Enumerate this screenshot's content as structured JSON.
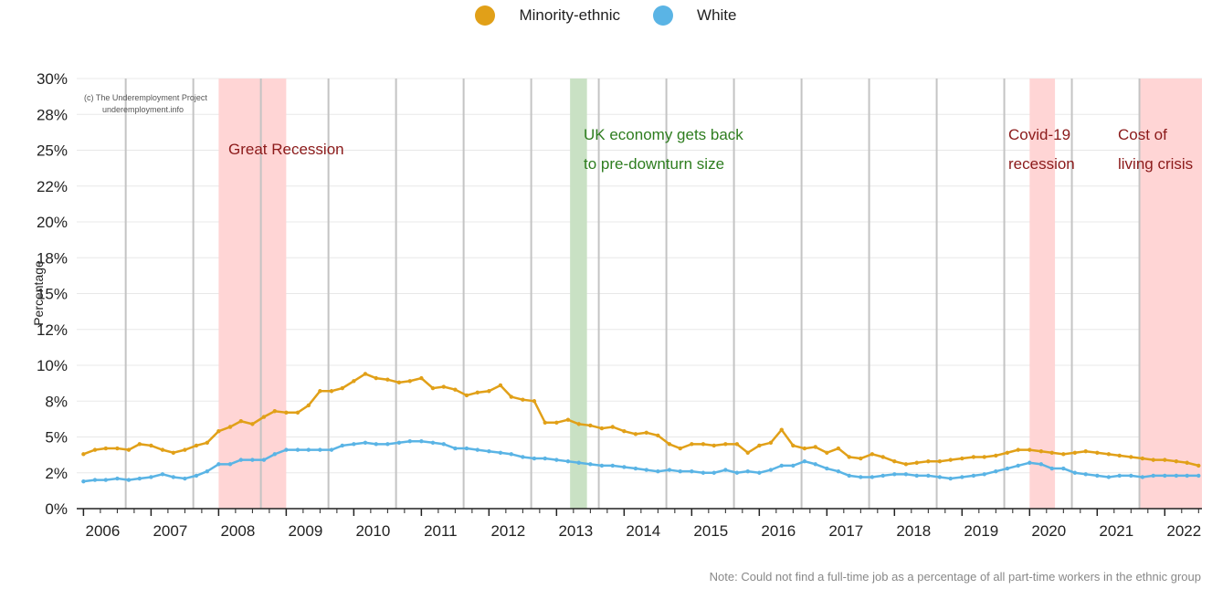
{
  "legend": [
    {
      "name": "Minority-ethnic",
      "color": "#e1a018"
    },
    {
      "name": "White",
      "color": "#5ab4e5"
    }
  ],
  "ylabel": "Percentage",
  "note": "Note: Could not find a full-time job as a percentage of all part-time workers in the ethnic group",
  "copyright": {
    "line1": "(c) The Underemployment Project",
    "line2": "underemployment.info"
  },
  "annotations": {
    "great_recession": "Great Recession",
    "uk_recovery_1": "UK economy gets back",
    "uk_recovery_2": "to pre-downturn size",
    "covid_1": "Covid-19",
    "covid_2": "recession",
    "col_1": "Cost of",
    "col_2": "living crisis"
  },
  "chart_data": {
    "type": "line",
    "ylim": [
      0,
      30
    ],
    "xlim": [
      2005.9,
      2022.55
    ],
    "y_ticks": [
      0,
      2.5,
      5,
      7.5,
      10,
      12.5,
      15,
      17.5,
      20,
      22.5,
      25,
      27.5,
      30
    ],
    "y_tick_labels": [
      "0%",
      "2%",
      "5%",
      "8%",
      "10%",
      "12%",
      "15%",
      "18%",
      "20%",
      "22%",
      "25%",
      "28%",
      "30%"
    ],
    "x_tick_labels": [
      "2006",
      "2007",
      "2008",
      "2009",
      "2010",
      "2011",
      "2012",
      "2013",
      "2014",
      "2015",
      "2016",
      "2017",
      "2018",
      "2019",
      "2020",
      "2021",
      "2022"
    ],
    "x_tick_values": [
      2006,
      2007,
      2008,
      2009,
      2010,
      2011,
      2012,
      2013,
      2014,
      2015,
      2016,
      2017,
      2018,
      2019,
      2020,
      2021,
      2022
    ],
    "gridlines": true,
    "legend_position": "top-center",
    "shaded_regions": [
      {
        "label": "Great Recession",
        "start": 2008.0,
        "end": 2009.0,
        "color": "#ffd5d5"
      },
      {
        "label": "UK economy gets back to pre-downturn size",
        "start": 2013.2,
        "end": 2013.45,
        "color": "#c9e1c4"
      },
      {
        "label": "Covid-19 recession",
        "start": 2020.0,
        "end": 2020.375,
        "color": "#ffd5d5"
      },
      {
        "label": "Cost of living crisis",
        "start": 2021.625,
        "end": 2022.55,
        "color": "#ffd5d5"
      }
    ],
    "vertical_lines": [
      2006.625,
      2007.625,
      2008.625,
      2009.625,
      2010.625,
      2011.625,
      2012.625,
      2013.625,
      2014.625,
      2015.625,
      2016.625,
      2017.625,
      2018.625,
      2019.625,
      2020.625,
      2021.625
    ],
    "x": [
      2006.0,
      2006.17,
      2006.33,
      2006.5,
      2006.67,
      2006.83,
      2007.0,
      2007.17,
      2007.33,
      2007.5,
      2007.67,
      2007.83,
      2008.0,
      2008.17,
      2008.33,
      2008.5,
      2008.67,
      2008.83,
      2009.0,
      2009.17,
      2009.33,
      2009.5,
      2009.67,
      2009.83,
      2010.0,
      2010.17,
      2010.33,
      2010.5,
      2010.67,
      2010.83,
      2011.0,
      2011.17,
      2011.33,
      2011.5,
      2011.67,
      2011.83,
      2012.0,
      2012.17,
      2012.33,
      2012.5,
      2012.67,
      2012.83,
      2013.0,
      2013.17,
      2013.33,
      2013.5,
      2013.67,
      2013.83,
      2014.0,
      2014.17,
      2014.33,
      2014.5,
      2014.67,
      2014.83,
      2015.0,
      2015.17,
      2015.33,
      2015.5,
      2015.67,
      2015.83,
      2016.0,
      2016.17,
      2016.33,
      2016.5,
      2016.67,
      2016.83,
      2017.0,
      2017.17,
      2017.33,
      2017.5,
      2017.67,
      2017.83,
      2018.0,
      2018.17,
      2018.33,
      2018.5,
      2018.67,
      2018.83,
      2019.0,
      2019.17,
      2019.33,
      2019.5,
      2019.67,
      2019.83,
      2020.0,
      2020.17,
      2020.33,
      2020.5,
      2020.67,
      2020.83,
      2021.0,
      2021.17,
      2021.33,
      2021.5,
      2021.67,
      2021.83,
      2022.0,
      2022.17,
      2022.33,
      2022.5
    ],
    "series": [
      {
        "name": "Minority-ethnic",
        "color": "#e1a018",
        "values": [
          3.8,
          4.1,
          4.2,
          4.2,
          4.1,
          4.5,
          4.4,
          4.1,
          3.9,
          4.1,
          4.4,
          4.6,
          5.4,
          5.7,
          6.1,
          5.9,
          6.4,
          6.8,
          6.7,
          6.7,
          7.2,
          8.2,
          8.2,
          8.4,
          8.9,
          9.4,
          9.1,
          9.0,
          8.8,
          8.9,
          9.1,
          8.4,
          8.5,
          8.3,
          7.9,
          8.1,
          8.2,
          8.6,
          7.8,
          7.6,
          7.5,
          6.0,
          6.0,
          6.2,
          5.9,
          5.8,
          5.6,
          5.7,
          5.4,
          5.2,
          5.3,
          5.1,
          4.5,
          4.2,
          4.5,
          4.5,
          4.4,
          4.5,
          4.5,
          3.9,
          4.4,
          4.6,
          5.5,
          4.4,
          4.2,
          4.3,
          3.9,
          4.2,
          3.6,
          3.5,
          3.8,
          3.6,
          3.3,
          3.1,
          3.2,
          3.3,
          3.3,
          3.4,
          3.5,
          3.6,
          3.6,
          3.7,
          3.9,
          4.1,
          4.1,
          4.0,
          3.9,
          3.8,
          3.9,
          4.0,
          3.9,
          3.8,
          3.7,
          3.6,
          3.5,
          3.4,
          3.4,
          3.3,
          3.2,
          3.0
        ]
      },
      {
        "name": "White",
        "color": "#5ab4e5",
        "values": [
          1.9,
          2.0,
          2.0,
          2.1,
          2.0,
          2.1,
          2.2,
          2.4,
          2.2,
          2.1,
          2.3,
          2.6,
          3.1,
          3.1,
          3.4,
          3.4,
          3.4,
          3.8,
          4.1,
          4.1,
          4.1,
          4.1,
          4.1,
          4.4,
          4.5,
          4.6,
          4.5,
          4.5,
          4.6,
          4.7,
          4.7,
          4.6,
          4.5,
          4.2,
          4.2,
          4.1,
          4.0,
          3.9,
          3.8,
          3.6,
          3.5,
          3.5,
          3.4,
          3.3,
          3.2,
          3.1,
          3.0,
          3.0,
          2.9,
          2.8,
          2.7,
          2.6,
          2.7,
          2.6,
          2.6,
          2.5,
          2.5,
          2.7,
          2.5,
          2.6,
          2.5,
          2.7,
          3.0,
          3.0,
          3.3,
          3.1,
          2.8,
          2.6,
          2.3,
          2.2,
          2.2,
          2.3,
          2.4,
          2.4,
          2.3,
          2.3,
          2.2,
          2.1,
          2.2,
          2.3,
          2.4,
          2.6,
          2.8,
          3.0,
          3.2,
          3.1,
          2.8,
          2.8,
          2.5,
          2.4,
          2.3,
          2.2,
          2.3,
          2.3,
          2.2,
          2.3,
          2.3,
          2.3,
          2.3,
          2.3
        ]
      }
    ]
  }
}
